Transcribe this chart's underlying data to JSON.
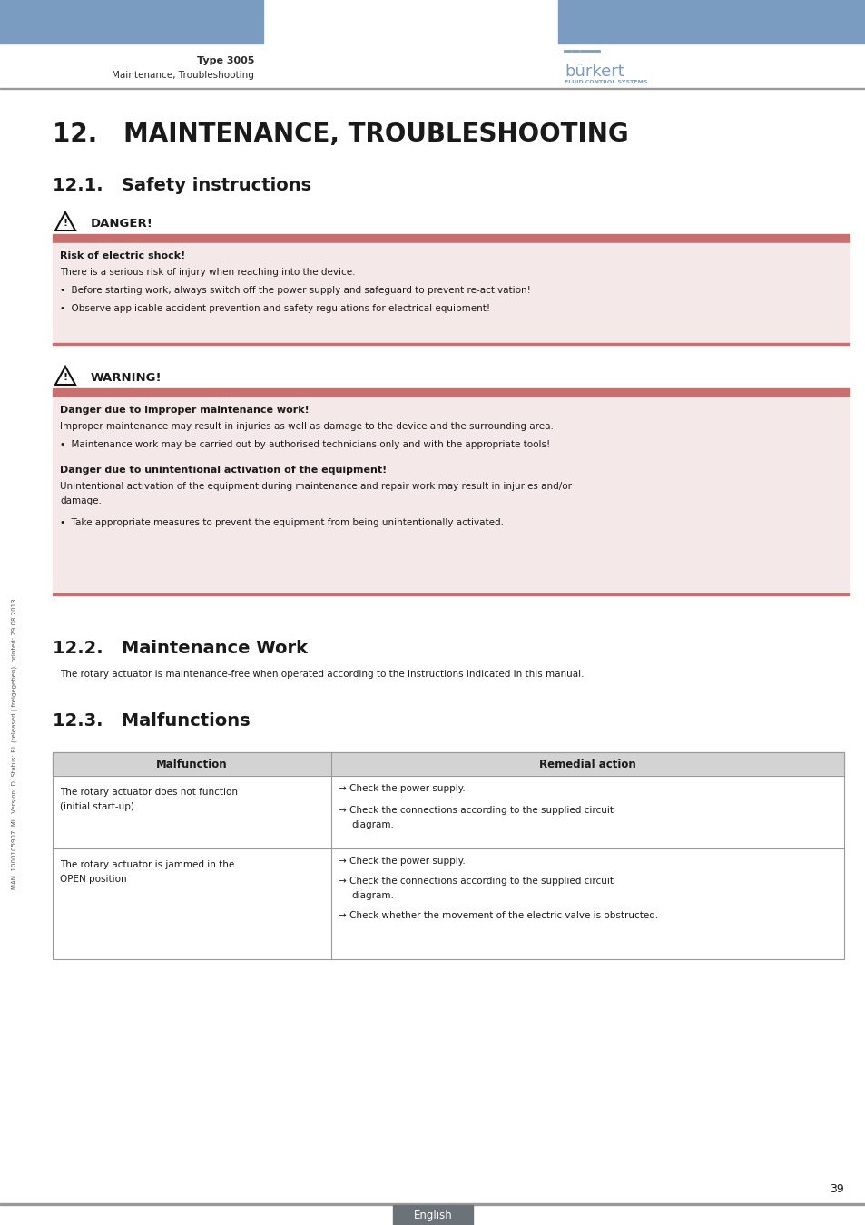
{
  "bg_color": "#ffffff",
  "header_bar_color": "#7a9cc0",
  "header_text_type": "Type 3005",
  "header_text_sub": "Maintenance, Troubleshooting",
  "burkert_color": "#7a9cc0",
  "title_main": "12.   MAINTENANCE, TROUBLESHOOTING",
  "section_21": "12.1.   Safety instructions",
  "danger_label": "DANGER!",
  "danger_bg_color": "#f5e8e8",
  "danger_bar_color": "#c87070",
  "danger_subtitle": "Risk of electric shock!",
  "danger_text1": "There is a serious risk of injury when reaching into the device.",
  "danger_bullet1": "•  Before starting work, always switch off the power supply and safeguard to prevent re-activation!",
  "danger_bullet2": "•  Observe applicable accident prevention and safety regulations for electrical equipment!",
  "warning_label": "WARNING!",
  "warning_bg_color": "#f5e8e8",
  "warning_bar_color": "#c87070",
  "warning_subtitle1": "Danger due to improper maintenance work!",
  "warning_text1": "Improper maintenance may result in injuries as well as damage to the device and the surrounding area.",
  "warning_bullet1": "•  Maintenance work may be carried out by authorised technicians only and with the appropriate tools!",
  "warning_subtitle2": "Danger due to unintentional activation of the equipment!",
  "warning_text2a": "Unintentional activation of the equipment during maintenance and repair work may result in injuries and/or",
  "warning_text2b": "damage.",
  "take_appropriate": "•  Take appropriate measures to prevent the equipment from being unintentionally activated.",
  "section_22": "12.2.   Maintenance Work",
  "maint_text": "The rotary actuator is maintenance-free when operated according to the instructions indicated in this manual.",
  "section_23": "12.3.   Malfunctions",
  "table_header_bg": "#d3d3d3",
  "table_col1_header": "Malfunction",
  "table_col2_header": "Remedial action",
  "side_text": "MAN  1000105907  ML  Version: D  Status: RL (released | freigegeben)  printed: 29.08.2013",
  "page_number": "39",
  "footer_text": "English",
  "footer_bg": "#6b7278",
  "separator_color": "#999999",
  "table_border_color": "#999999",
  "text_color": "#1a1a1a"
}
